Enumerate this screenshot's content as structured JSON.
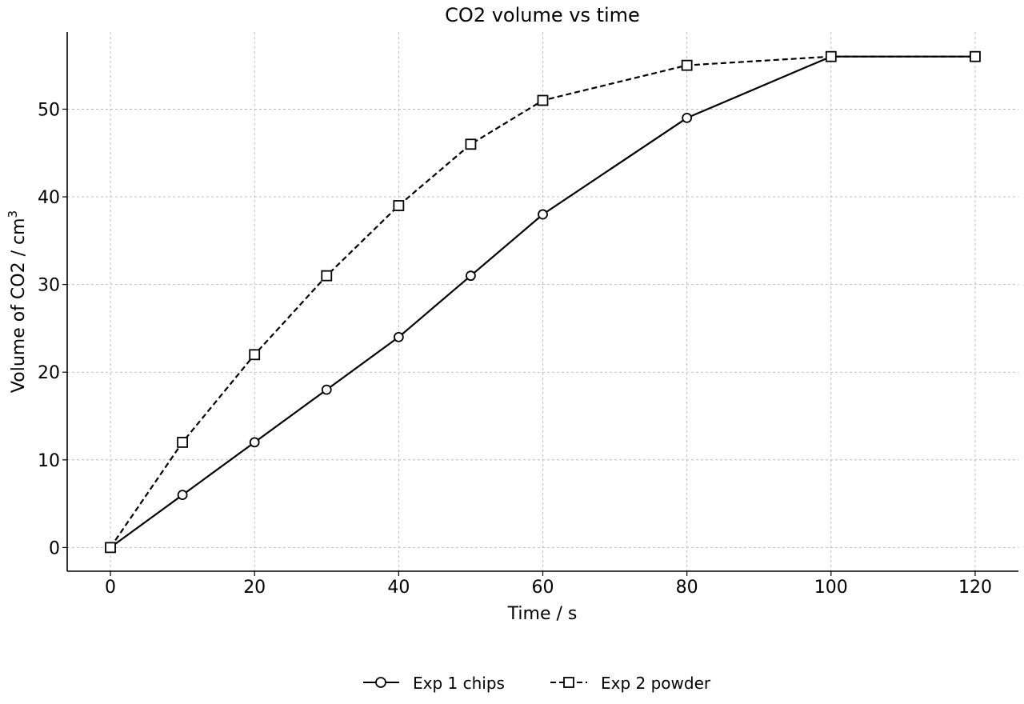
{
  "chart_data": {
    "type": "line",
    "title": "CO2 volume vs time",
    "xlabel": "Time / s",
    "ylabel": "Volume of CO2 / cm",
    "ylabel_superscript": "3",
    "xlim": [
      -6,
      126
    ],
    "ylim": [
      -2.7,
      58.8
    ],
    "xticks": [
      0,
      20,
      40,
      60,
      80,
      100,
      120
    ],
    "yticks": [
      0,
      10,
      20,
      30,
      40,
      50
    ],
    "grid": true,
    "legend_position": "bottom-center",
    "series": [
      {
        "name": "Exp 1 chips",
        "marker": "circle",
        "line_style": "solid",
        "color": "#000000",
        "x": [
          0,
          10,
          20,
          30,
          40,
          50,
          60,
          80,
          100,
          120
        ],
        "y": [
          0,
          6,
          12,
          18,
          24,
          31,
          38,
          49,
          56,
          56
        ]
      },
      {
        "name": "Exp 2 powder",
        "marker": "square",
        "line_style": "dashed",
        "color": "#000000",
        "x": [
          0,
          10,
          20,
          30,
          40,
          50,
          60,
          80,
          100,
          120
        ],
        "y": [
          0,
          12,
          22,
          31,
          39,
          46,
          51,
          55,
          56,
          56
        ]
      }
    ]
  }
}
